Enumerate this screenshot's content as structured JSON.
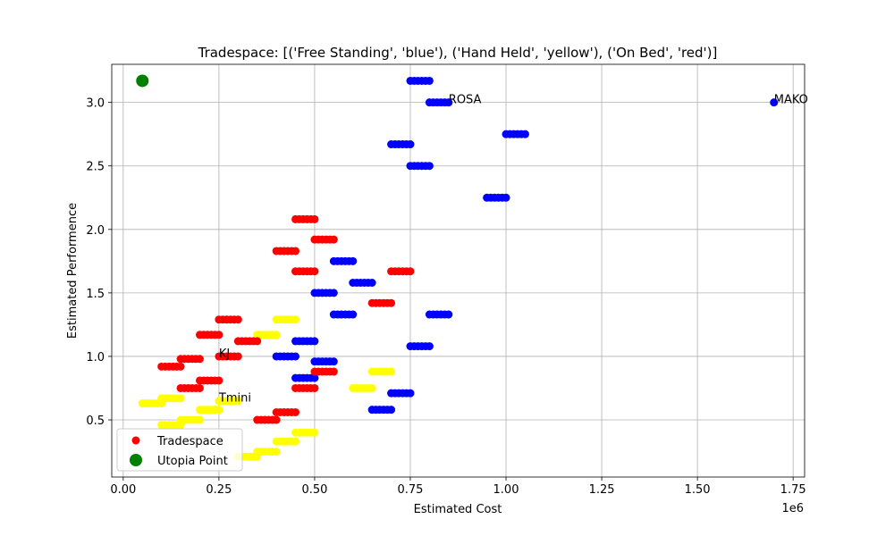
{
  "chart_data": {
    "type": "scatter",
    "title": "Tradespace: [('Free Standing', 'blue'), ('Hand Held', 'yellow'), ('On Bed', 'red')]",
    "xlabel": "Estimated Cost",
    "ylabel": "Estimated Performence",
    "x_offset_label": "1e6",
    "xlim": [
      -0.03,
      1.78
    ],
    "ylim": [
      0.05,
      3.3
    ],
    "x_scale_factor": 1000000,
    "xticks": [
      0.0,
      0.25,
      0.5,
      0.75,
      1.0,
      1.25,
      1.5,
      1.75
    ],
    "xtick_labels": [
      "0.00",
      "0.25",
      "0.50",
      "0.75",
      "1.00",
      "1.25",
      "1.50",
      "1.75"
    ],
    "yticks": [
      0.5,
      1.0,
      1.5,
      2.0,
      2.5,
      3.0
    ],
    "ytick_labels": [
      "0.5",
      "1.0",
      "1.5",
      "2.0",
      "2.5",
      "3.0"
    ],
    "grid": true,
    "legend": {
      "location": "lower-left",
      "entries": [
        {
          "label": "Tradespace",
          "color": "#ff0000",
          "marker": "small-circle"
        },
        {
          "label": "Utopia Point",
          "color": "#008000",
          "marker": "large-circle"
        }
      ]
    },
    "colors": {
      "Free Standing": "#0000ff",
      "Hand Held": "#ffff00",
      "On Bed": "#ff0000",
      "Utopia Point": "#008000"
    },
    "series": [
      {
        "group": "Free Standing",
        "color": "#0000ff",
        "clusters": [
          {
            "x": [
              0.75,
              0.76,
              0.77,
              0.78,
              0.79,
              0.8
            ],
            "y": 3.17
          },
          {
            "x": [
              0.8,
              0.81,
              0.82,
              0.83,
              0.84,
              0.85
            ],
            "y": 3.0
          },
          {
            "x": [
              1.0,
              1.01,
              1.02,
              1.03,
              1.04,
              1.05
            ],
            "y": 2.75
          },
          {
            "x": [
              0.7,
              0.71,
              0.72,
              0.73,
              0.74,
              0.75
            ],
            "y": 2.67
          },
          {
            "x": [
              0.75,
              0.76,
              0.77,
              0.78,
              0.79,
              0.8
            ],
            "y": 2.5
          },
          {
            "x": [
              0.95,
              0.96,
              0.97,
              0.98,
              0.99,
              1.0
            ],
            "y": 2.25
          },
          {
            "x": [
              0.55,
              0.56,
              0.57,
              0.58,
              0.59,
              0.6
            ],
            "y": 1.75
          },
          {
            "x": [
              0.6,
              0.61,
              0.62,
              0.63,
              0.64,
              0.65
            ],
            "y": 1.58
          },
          {
            "x": [
              0.5,
              0.51,
              0.52,
              0.53,
              0.54,
              0.55
            ],
            "y": 1.5
          },
          {
            "x": [
              0.55,
              0.56,
              0.57,
              0.58,
              0.59,
              0.6
            ],
            "y": 1.33
          },
          {
            "x": [
              0.8,
              0.81,
              0.82,
              0.83,
              0.84,
              0.85
            ],
            "y": 1.33
          },
          {
            "x": [
              0.45,
              0.46,
              0.47,
              0.48,
              0.49,
              0.5
            ],
            "y": 1.12
          },
          {
            "x": [
              0.75,
              0.76,
              0.77,
              0.78,
              0.79,
              0.8
            ],
            "y": 1.08
          },
          {
            "x": [
              0.4,
              0.41,
              0.42,
              0.43,
              0.44,
              0.45
            ],
            "y": 1.0
          },
          {
            "x": [
              0.5,
              0.51,
              0.52,
              0.53,
              0.54,
              0.55
            ],
            "y": 0.96
          },
          {
            "x": [
              0.45,
              0.46,
              0.47,
              0.48,
              0.49,
              0.5
            ],
            "y": 0.83
          },
          {
            "x": [
              0.7,
              0.71,
              0.72,
              0.73,
              0.74,
              0.75
            ],
            "y": 0.71
          },
          {
            "x": [
              0.65,
              0.66,
              0.67,
              0.68,
              0.69,
              0.7
            ],
            "y": 0.58
          },
          {
            "x": [
              1.7
            ],
            "y": 3.0
          }
        ]
      },
      {
        "group": "Hand Held",
        "color": "#ffff00",
        "clusters": [
          {
            "x": [
              0.4,
              0.41,
              0.42,
              0.43,
              0.44,
              0.45
            ],
            "y": 1.29
          },
          {
            "x": [
              0.35,
              0.36,
              0.37,
              0.38,
              0.39,
              0.4
            ],
            "y": 1.17
          },
          {
            "x": [
              0.65,
              0.66,
              0.67,
              0.68,
              0.69,
              0.7
            ],
            "y": 0.88
          },
          {
            "x": [
              0.6,
              0.61,
              0.62,
              0.63,
              0.64,
              0.65
            ],
            "y": 0.75
          },
          {
            "x": [
              0.1,
              0.11,
              0.12,
              0.13,
              0.14,
              0.15
            ],
            "y": 0.67
          },
          {
            "x": [
              0.25,
              0.26,
              0.27,
              0.28,
              0.29,
              0.3
            ],
            "y": 0.65
          },
          {
            "x": [
              0.05,
              0.06,
              0.07,
              0.08,
              0.09,
              0.1
            ],
            "y": 0.63
          },
          {
            "x": [
              0.2,
              0.21,
              0.22,
              0.23,
              0.24,
              0.25
            ],
            "y": 0.58
          },
          {
            "x": [
              0.15,
              0.16,
              0.17,
              0.18,
              0.19,
              0.2
            ],
            "y": 0.5
          },
          {
            "x": [
              0.1,
              0.11,
              0.12,
              0.13,
              0.14,
              0.15
            ],
            "y": 0.46
          },
          {
            "x": [
              0.45,
              0.46,
              0.47,
              0.48,
              0.49,
              0.5
            ],
            "y": 0.4
          },
          {
            "x": [
              0.4,
              0.41,
              0.42,
              0.43,
              0.44,
              0.45
            ],
            "y": 0.33
          },
          {
            "x": [
              0.35,
              0.36,
              0.37,
              0.38,
              0.39,
              0.4
            ],
            "y": 0.25
          },
          {
            "x": [
              0.3,
              0.31,
              0.32,
              0.33,
              0.34,
              0.35
            ],
            "y": 0.21
          }
        ]
      },
      {
        "group": "On Bed",
        "color": "#ff0000",
        "clusters": [
          {
            "x": [
              0.45,
              0.46,
              0.47,
              0.48,
              0.49,
              0.5
            ],
            "y": 2.08
          },
          {
            "x": [
              0.5,
              0.51,
              0.52,
              0.53,
              0.54,
              0.55
            ],
            "y": 1.92
          },
          {
            "x": [
              0.4,
              0.41,
              0.42,
              0.43,
              0.44,
              0.45
            ],
            "y": 1.83
          },
          {
            "x": [
              0.45,
              0.46,
              0.47,
              0.48,
              0.49,
              0.5
            ],
            "y": 1.67
          },
          {
            "x": [
              0.7,
              0.71,
              0.72,
              0.73,
              0.74,
              0.75
            ],
            "y": 1.67
          },
          {
            "x": [
              0.65,
              0.66,
              0.67,
              0.68,
              0.69,
              0.7
            ],
            "y": 1.42
          },
          {
            "x": [
              0.25,
              0.26,
              0.27,
              0.28,
              0.29,
              0.3
            ],
            "y": 1.29
          },
          {
            "x": [
              0.2,
              0.21,
              0.22,
              0.23,
              0.24,
              0.25
            ],
            "y": 1.17
          },
          {
            "x": [
              0.3,
              0.31,
              0.32,
              0.33,
              0.34,
              0.35
            ],
            "y": 1.12
          },
          {
            "x": [
              0.25,
              0.26,
              0.27,
              0.28,
              0.29,
              0.3
            ],
            "y": 1.0
          },
          {
            "x": [
              0.15,
              0.16,
              0.17,
              0.18,
              0.19,
              0.2
            ],
            "y": 0.98
          },
          {
            "x": [
              0.1,
              0.11,
              0.12,
              0.13,
              0.14,
              0.15
            ],
            "y": 0.92
          },
          {
            "x": [
              0.5,
              0.51,
              0.52,
              0.53,
              0.54,
              0.55
            ],
            "y": 0.88
          },
          {
            "x": [
              0.2,
              0.21,
              0.22,
              0.23,
              0.24,
              0.25
            ],
            "y": 0.81
          },
          {
            "x": [
              0.15,
              0.16,
              0.17,
              0.18,
              0.19,
              0.2
            ],
            "y": 0.75
          },
          {
            "x": [
              0.45,
              0.46,
              0.47,
              0.48,
              0.49,
              0.5
            ],
            "y": 0.75
          },
          {
            "x": [
              0.4,
              0.41,
              0.42,
              0.43,
              0.44,
              0.45
            ],
            "y": 0.56
          },
          {
            "x": [
              0.35,
              0.36,
              0.37,
              0.38,
              0.39,
              0.4
            ],
            "y": 0.5
          }
        ]
      }
    ],
    "utopia_point": {
      "x": 0.05,
      "y": 3.17,
      "color": "#008000"
    },
    "annotations": [
      {
        "text": "ROSA",
        "x": 0.85,
        "y": 3.0
      },
      {
        "text": "MAKO",
        "x": 1.7,
        "y": 3.0
      },
      {
        "text": "KJ",
        "x": 0.25,
        "y": 1.0
      },
      {
        "text": "Tmini",
        "x": 0.25,
        "y": 0.65
      }
    ]
  }
}
